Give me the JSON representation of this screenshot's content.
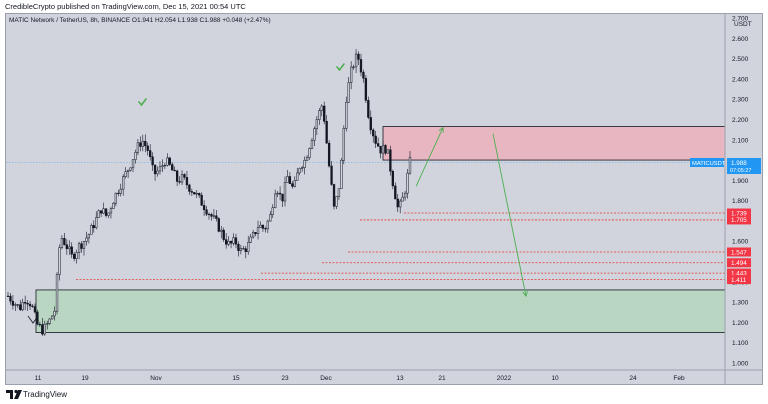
{
  "attribution": "CredibleCrypto published on TradingView.com, Dec 15, 2021 00:54 UTC",
  "symbol_info": "MATIC Network / TetherUS, 8h, BINANCE  O1.941  H2.054  L1.938  C1.988  +0.048 (+2.47%)",
  "footer_brand": "TradingView",
  "colors": {
    "background": "#d1d4dc",
    "candle_up": "#131722",
    "candle_down": "#131722",
    "supply_zone": "#e8b6c0",
    "demand_zone": "#b9d6c2",
    "support_line": "#e53935",
    "arrow": "#4caf50",
    "checkmark": "#4caf50",
    "price_label_bg": "#2196f3",
    "level_label_bg": "#f23645"
  },
  "chart_data": {
    "type": "candlestick",
    "symbol": "MATICUSDT",
    "interval": "8h",
    "ylim": [
      0.92,
      2.72
    ],
    "y_unit_label": "USDT",
    "y_ticks": [
      "1.000",
      "1.100",
      "1.200",
      "1.300",
      "1.400",
      "1.500",
      "1.600",
      "1.700",
      "1.800",
      "1.900",
      "2.000",
      "2.100",
      "2.200",
      "2.300",
      "2.400",
      "2.500",
      "2.600",
      "2.700"
    ],
    "x_ticks": [
      "11",
      "19",
      "Nov",
      "15",
      "23",
      "Dec",
      "13",
      "21",
      "2022",
      "10",
      "24",
      "Feb"
    ],
    "last_price": {
      "label": "MATICUSDT",
      "value": "1.988",
      "countdown": "07:05:27"
    },
    "support_levels": [
      "1.739",
      "1.705",
      "1.547",
      "1.494",
      "1.443",
      "1.411"
    ],
    "supply_zone": {
      "low": 2.0,
      "high": 2.165
    },
    "demand_zone": {
      "low": 1.15,
      "high": 1.36
    },
    "projection": [
      {
        "from": [
          "Dec 16",
          1.87
        ],
        "to": [
          "Dec 20",
          2.16
        ]
      },
      {
        "from": [
          "Dec 23",
          2.13
        ],
        "to": [
          "Jan 8",
          1.33
        ]
      }
    ],
    "price_path": [
      1.33,
      1.3,
      1.27,
      1.32,
      1.29,
      1.19,
      1.16,
      1.2,
      1.26,
      1.63,
      1.58,
      1.52,
      1.57,
      1.6,
      1.64,
      1.7,
      1.76,
      1.72,
      1.8,
      1.86,
      1.92,
      1.98,
      2.05,
      2.1,
      2.05,
      1.93,
      1.95,
      2.0,
      1.96,
      1.9,
      1.91,
      1.87,
      1.84,
      1.8,
      1.76,
      1.72,
      1.68,
      1.62,
      1.58,
      1.6,
      1.55,
      1.57,
      1.62,
      1.68,
      1.66,
      1.72,
      1.88,
      1.8,
      1.92,
      1.85,
      1.97,
      2.0,
      2.1,
      2.2,
      2.28,
      2.0,
      1.75,
      1.9,
      2.3,
      2.45,
      2.52,
      2.4,
      2.2,
      2.1,
      2.05,
      2.06,
      1.9,
      1.75,
      1.83,
      1.99
    ]
  }
}
